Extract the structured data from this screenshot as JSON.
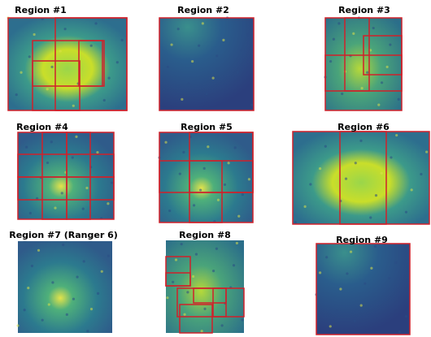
{
  "panels": [
    {
      "title": "Region #1"
    },
    {
      "title": "Region #2"
    },
    {
      "title": "Region #3"
    },
    {
      "title": "Region #4"
    },
    {
      "title": "Region #5"
    },
    {
      "title": "Region #6"
    },
    {
      "title": "Region #7 (Ranger 6)"
    },
    {
      "title": "Region #8"
    },
    {
      "title": "Region #9"
    }
  ]
}
